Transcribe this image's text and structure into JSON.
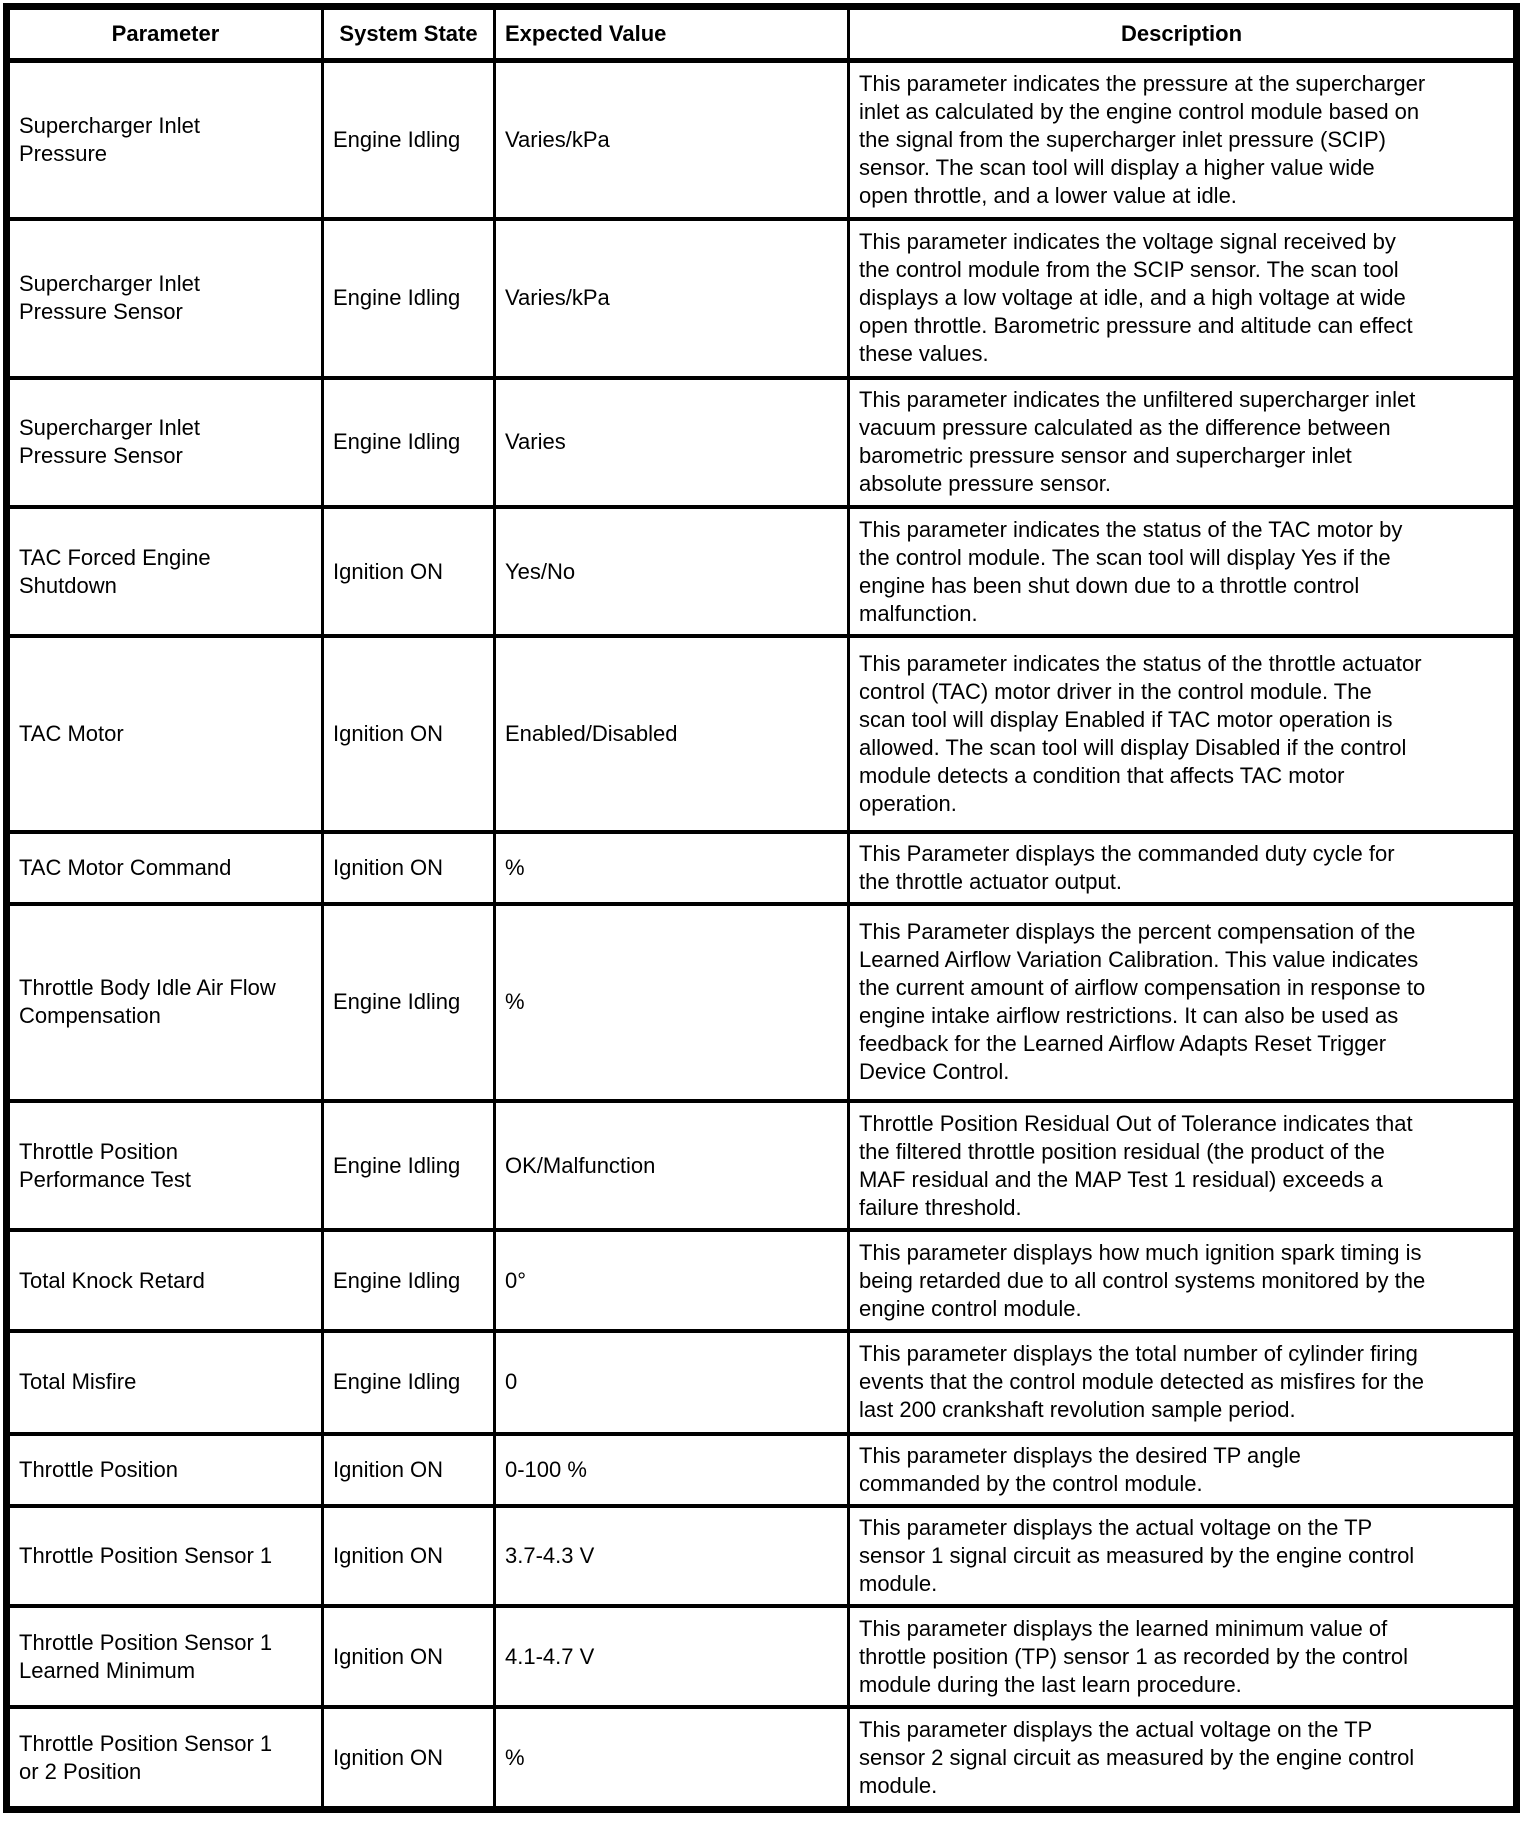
{
  "table": {
    "headers": [
      "Parameter",
      "System State",
      "Expected Value",
      "Description"
    ],
    "rows": [
      {
        "parameter": "Supercharger Inlet\nPressure",
        "system_state": "Engine Idling",
        "expected_value": "Varies/kPa",
        "description": "This parameter indicates the pressure at the supercharger\ninlet as calculated by the engine control module based on\nthe signal from the supercharger inlet pressure (SCIP)\nsensor. The scan tool will display a higher value wide\nopen throttle, and a lower value at idle."
      },
      {
        "parameter": "Supercharger Inlet\nPressure Sensor",
        "system_state": "Engine Idling",
        "expected_value": "Varies/kPa",
        "description": "This parameter indicates the voltage signal received by\nthe control module from the SCIP sensor. The scan tool\ndisplays a low voltage at idle, and a high voltage at wide\nopen throttle. Barometric pressure and altitude can effect\nthese values."
      },
      {
        "parameter": "Supercharger Inlet\nPressure Sensor",
        "system_state": "Engine Idling",
        "expected_value": "Varies",
        "description": "This parameter indicates the unfiltered supercharger inlet\nvacuum pressure calculated as the difference between\nbarometric pressure sensor and supercharger inlet\nabsolute pressure sensor."
      },
      {
        "parameter": "TAC Forced Engine\nShutdown",
        "system_state": "Ignition ON",
        "expected_value": "Yes/No",
        "description": "This parameter indicates the status of the TAC motor by\nthe control module. The scan tool will display Yes if the\nengine has been shut down due to a throttle control\nmalfunction."
      },
      {
        "parameter": "TAC Motor",
        "system_state": "Ignition ON",
        "expected_value": "Enabled/Disabled",
        "description": "This parameter indicates the status of the throttle actuator\ncontrol (TAC) motor driver in the control module. The\nscan tool will display Enabled if TAC motor operation is\nallowed. The scan tool will display Disabled if the control\nmodule detects a condition that affects TAC motor\noperation."
      },
      {
        "parameter": "TAC Motor Command",
        "system_state": "Ignition ON",
        "expected_value": "%",
        "description": "This Parameter displays the commanded duty cycle for\nthe throttle actuator output."
      },
      {
        "parameter": "Throttle Body Idle Air Flow\nCompensation",
        "system_state": "Engine Idling",
        "expected_value": "%",
        "description": "This Parameter displays the percent compensation of the\nLearned Airflow Variation Calibration. This value indicates\nthe current amount of airflow compensation in response to\nengine intake airflow restrictions. It can also be used as\nfeedback for the Learned Airflow Adapts Reset Trigger\nDevice Control."
      },
      {
        "parameter": "Throttle Position\nPerformance Test",
        "system_state": "Engine Idling",
        "expected_value": "OK/Malfunction",
        "description": "Throttle Position Residual Out of Tolerance indicates that\nthe filtered throttle position residual (the product of the\nMAF residual and the MAP Test 1 residual) exceeds a\nfailure threshold."
      },
      {
        "parameter": "Total Knock Retard",
        "system_state": "Engine Idling",
        "expected_value": "0°",
        "description": "This parameter displays how much ignition spark timing is\nbeing retarded due to all control systems monitored by the\nengine control module."
      },
      {
        "parameter": "Total Misfire",
        "system_state": "Engine Idling",
        "expected_value": "0",
        "description": "This parameter displays the total number of cylinder firing\nevents that the control module detected as misfires for the\nlast 200 crankshaft revolution sample period."
      },
      {
        "parameter": "Throttle Position",
        "system_state": "Ignition ON",
        "expected_value": "0-100 %",
        "description": "This parameter displays the desired TP angle\ncommanded by the control module."
      },
      {
        "parameter": "Throttle Position Sensor 1",
        "system_state": "Ignition ON",
        "expected_value": "3.7-4.3 V",
        "description": "This parameter displays the actual voltage on the TP\nsensor 1 signal circuit as measured by the engine control\nmodule."
      },
      {
        "parameter": "Throttle Position Sensor 1\nLearned Minimum",
        "system_state": "Ignition ON",
        "expected_value": "4.1-4.7 V",
        "description": "This parameter displays the learned minimum value of\nthrottle position (TP) sensor 1 as recorded by the control\nmodule during the last learn procedure."
      },
      {
        "parameter": "Throttle Position Sensor 1\nor 2 Position",
        "system_state": "Ignition ON",
        "expected_value": "%",
        "description": "This parameter displays the actual voltage on the TP\nsensor 2 signal circuit as measured by the engine control\nmodule."
      }
    ]
  }
}
